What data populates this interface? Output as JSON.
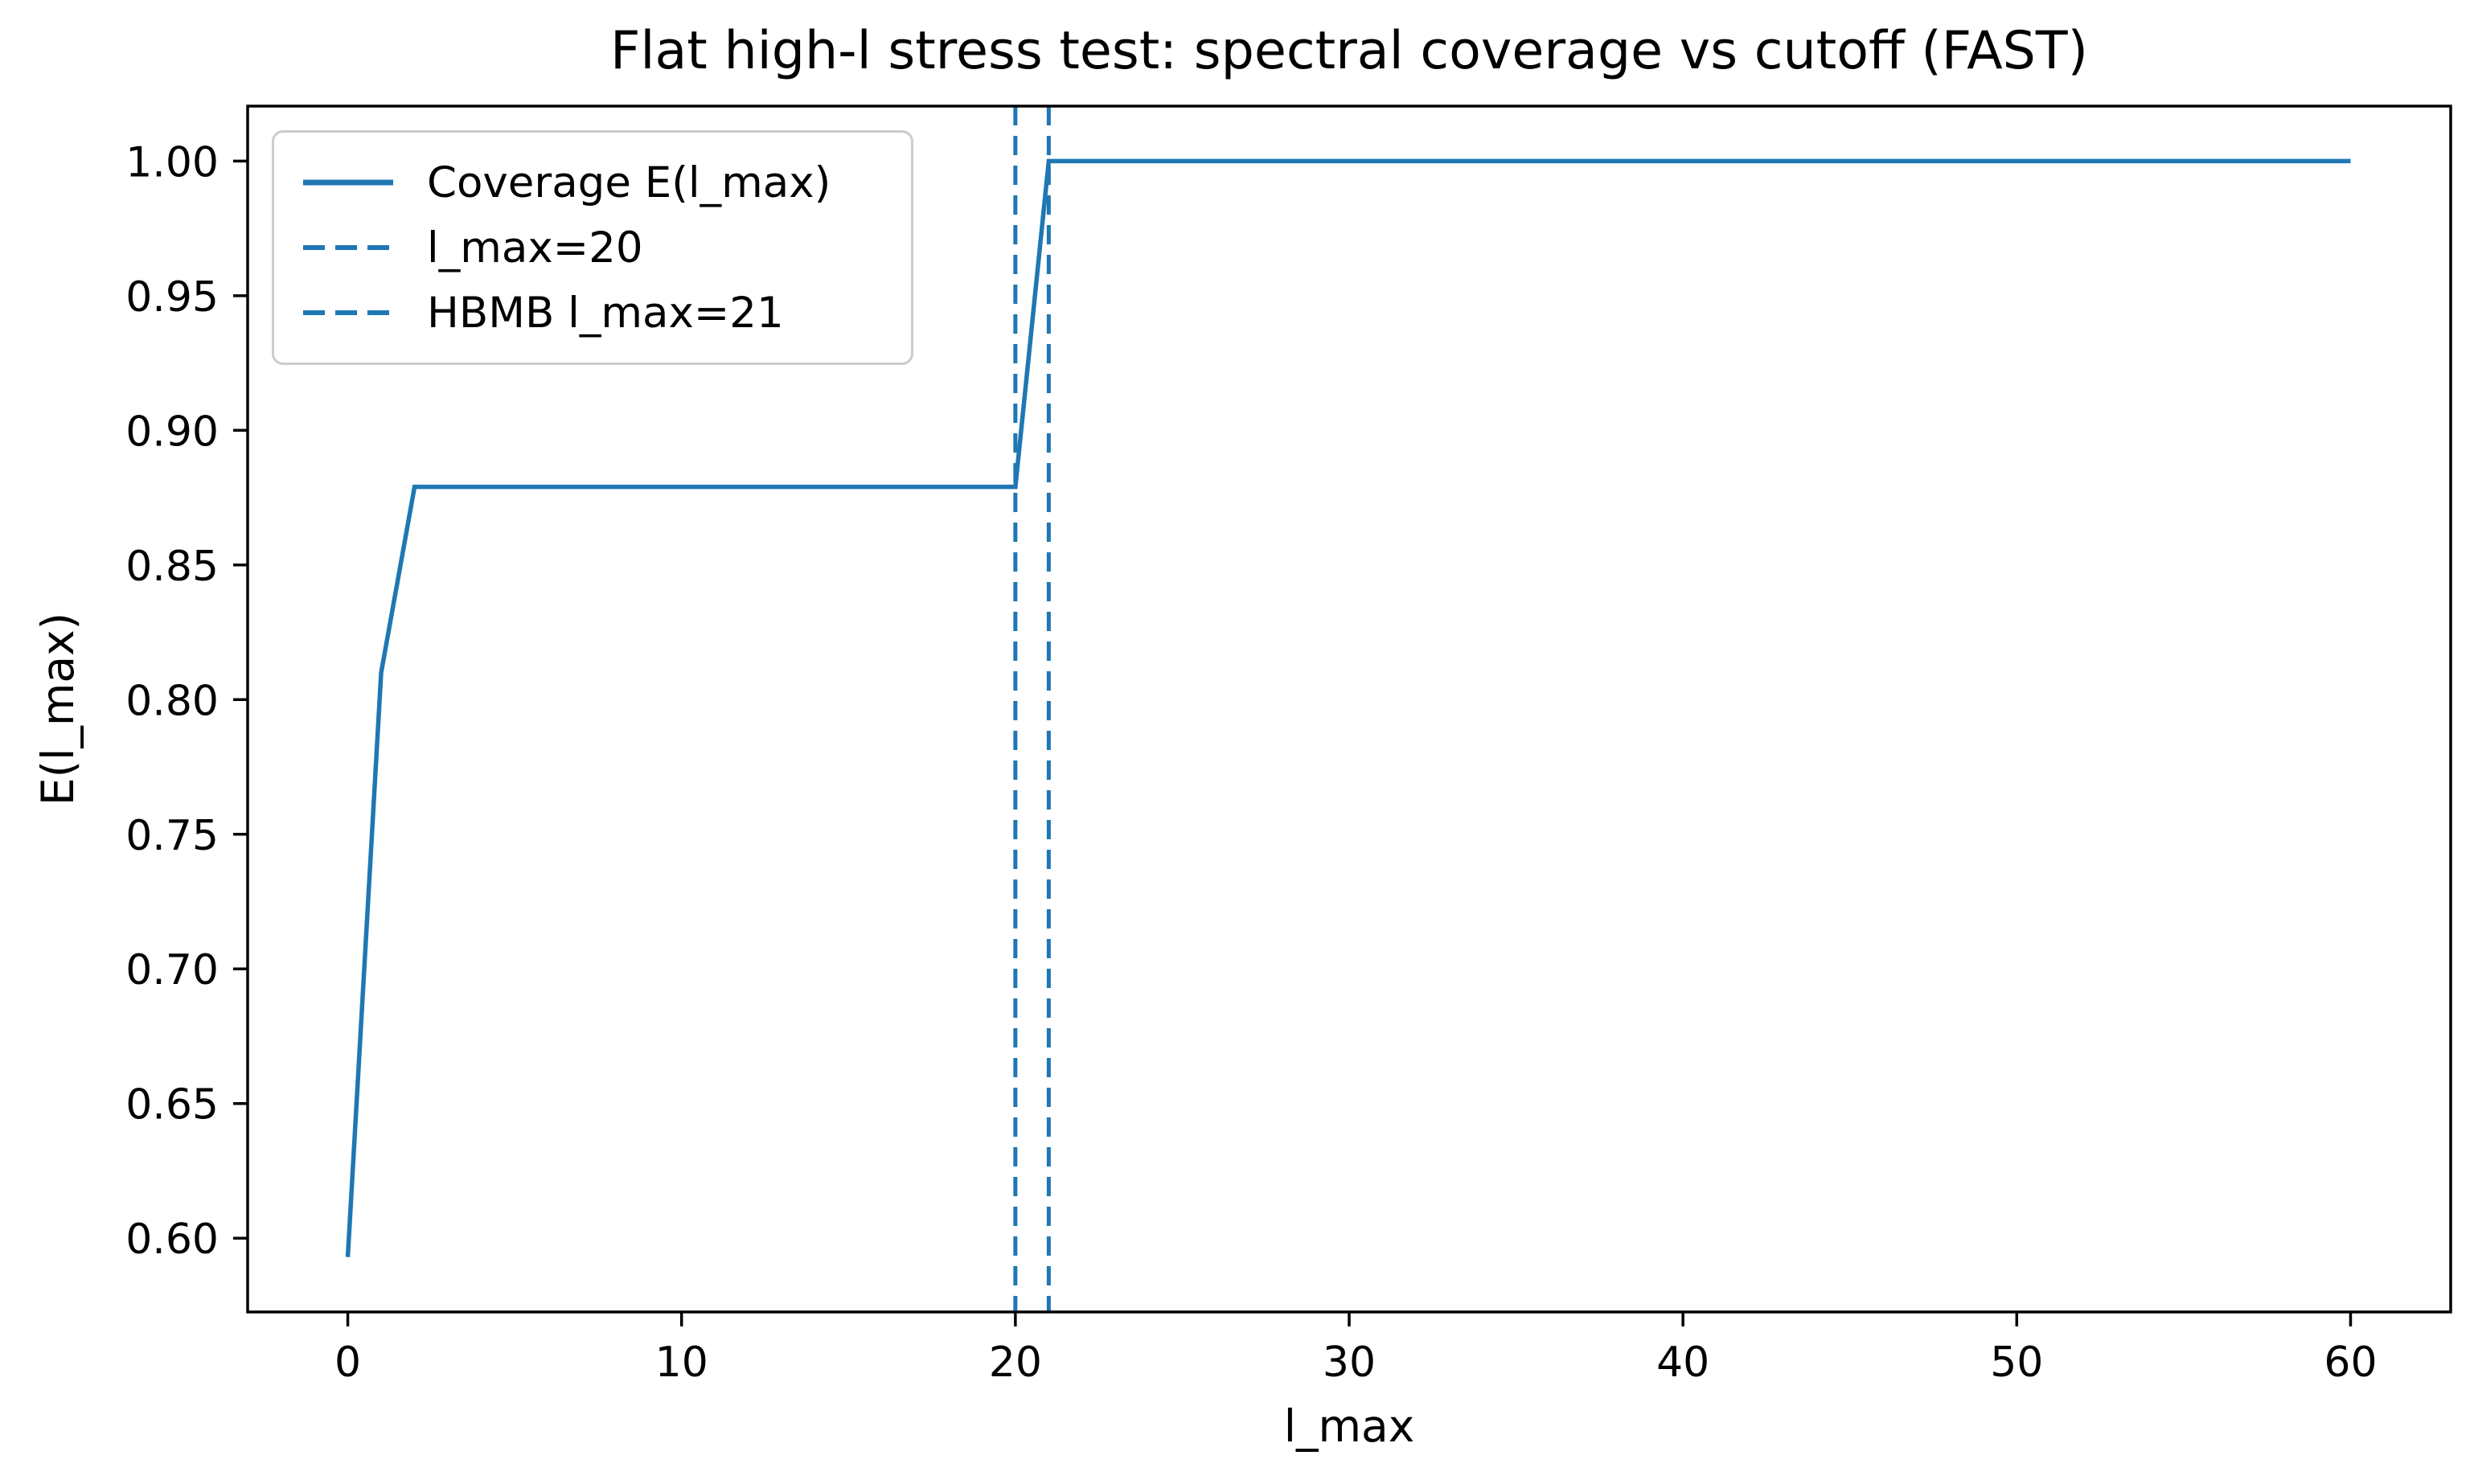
{
  "title": "Flat high-l stress test: spectral coverage vs cutoff (FAST)",
  "colors": {
    "line": "#1f77b4",
    "axis": "#000000",
    "legend_border": "#cccccc",
    "background": "#ffffff",
    "text": "#000000"
  },
  "chart_data": {
    "type": "line",
    "title": "Flat high-l stress test: spectral coverage vs cutoff (FAST)",
    "xlabel": "l_max",
    "ylabel": "E(l_max)",
    "grid": false,
    "legend_position": "upper left",
    "xlim": [
      -3,
      63
    ],
    "ylim": [
      0.5726,
      1.0204
    ],
    "xticks": [
      0,
      10,
      20,
      30,
      40,
      50,
      60
    ],
    "xtick_labels": [
      "0",
      "10",
      "20",
      "30",
      "40",
      "50",
      "60"
    ],
    "yticks": [
      0.6,
      0.65,
      0.7,
      0.75,
      0.8,
      0.85,
      0.9,
      0.95,
      1.0
    ],
    "ytick_labels": [
      "0.60",
      "0.65",
      "0.70",
      "0.75",
      "0.80",
      "0.85",
      "0.90",
      "0.95",
      "1.00"
    ],
    "series": [
      {
        "name": "Coverage E(l_max)",
        "style": "solid",
        "x": [
          0,
          1,
          2,
          20,
          21,
          60
        ],
        "y": [
          0.593,
          0.81,
          0.879,
          0.879,
          1.0,
          1.0
        ]
      }
    ],
    "vlines": [
      {
        "x": 20,
        "label": "l_max=20",
        "style": "dashed"
      },
      {
        "x": 21,
        "label": "HBMB l_max=21",
        "style": "dashed"
      }
    ]
  }
}
